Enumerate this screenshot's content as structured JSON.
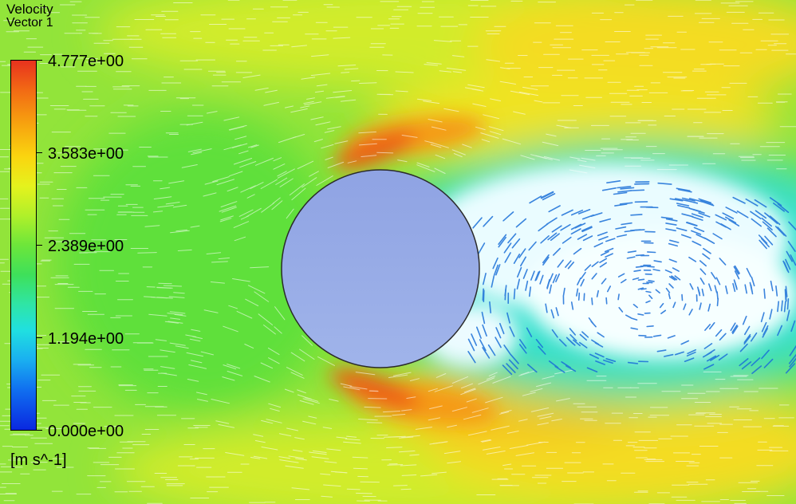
{
  "legend": {
    "title": "Velocity",
    "subtitle": "Vector 1",
    "units": "[m s^-1]",
    "ticks": [
      {
        "label": "4.777e+00",
        "value": 4.777
      },
      {
        "label": "3.583e+00",
        "value": 3.583
      },
      {
        "label": "2.389e+00",
        "value": 2.389
      },
      {
        "label": "1.194e+00",
        "value": 1.194
      },
      {
        "label": "0.000e+00",
        "value": 0.0
      }
    ],
    "range": [
      0.0,
      4.777
    ],
    "colormap": [
      "#0a28e0",
      "#1070f0",
      "#1ab0f0",
      "#20e0e0",
      "#2fe5a5",
      "#3ee05a",
      "#6de63a",
      "#b0f02a",
      "#e5f21d",
      "#fad50f",
      "#f7a20f",
      "#f26a14",
      "#e8321e"
    ]
  },
  "scene": {
    "cylinder_color": "#93a8e6",
    "cylinder_outline": "#2a2a2a",
    "vector_color": "#ffffff"
  }
}
